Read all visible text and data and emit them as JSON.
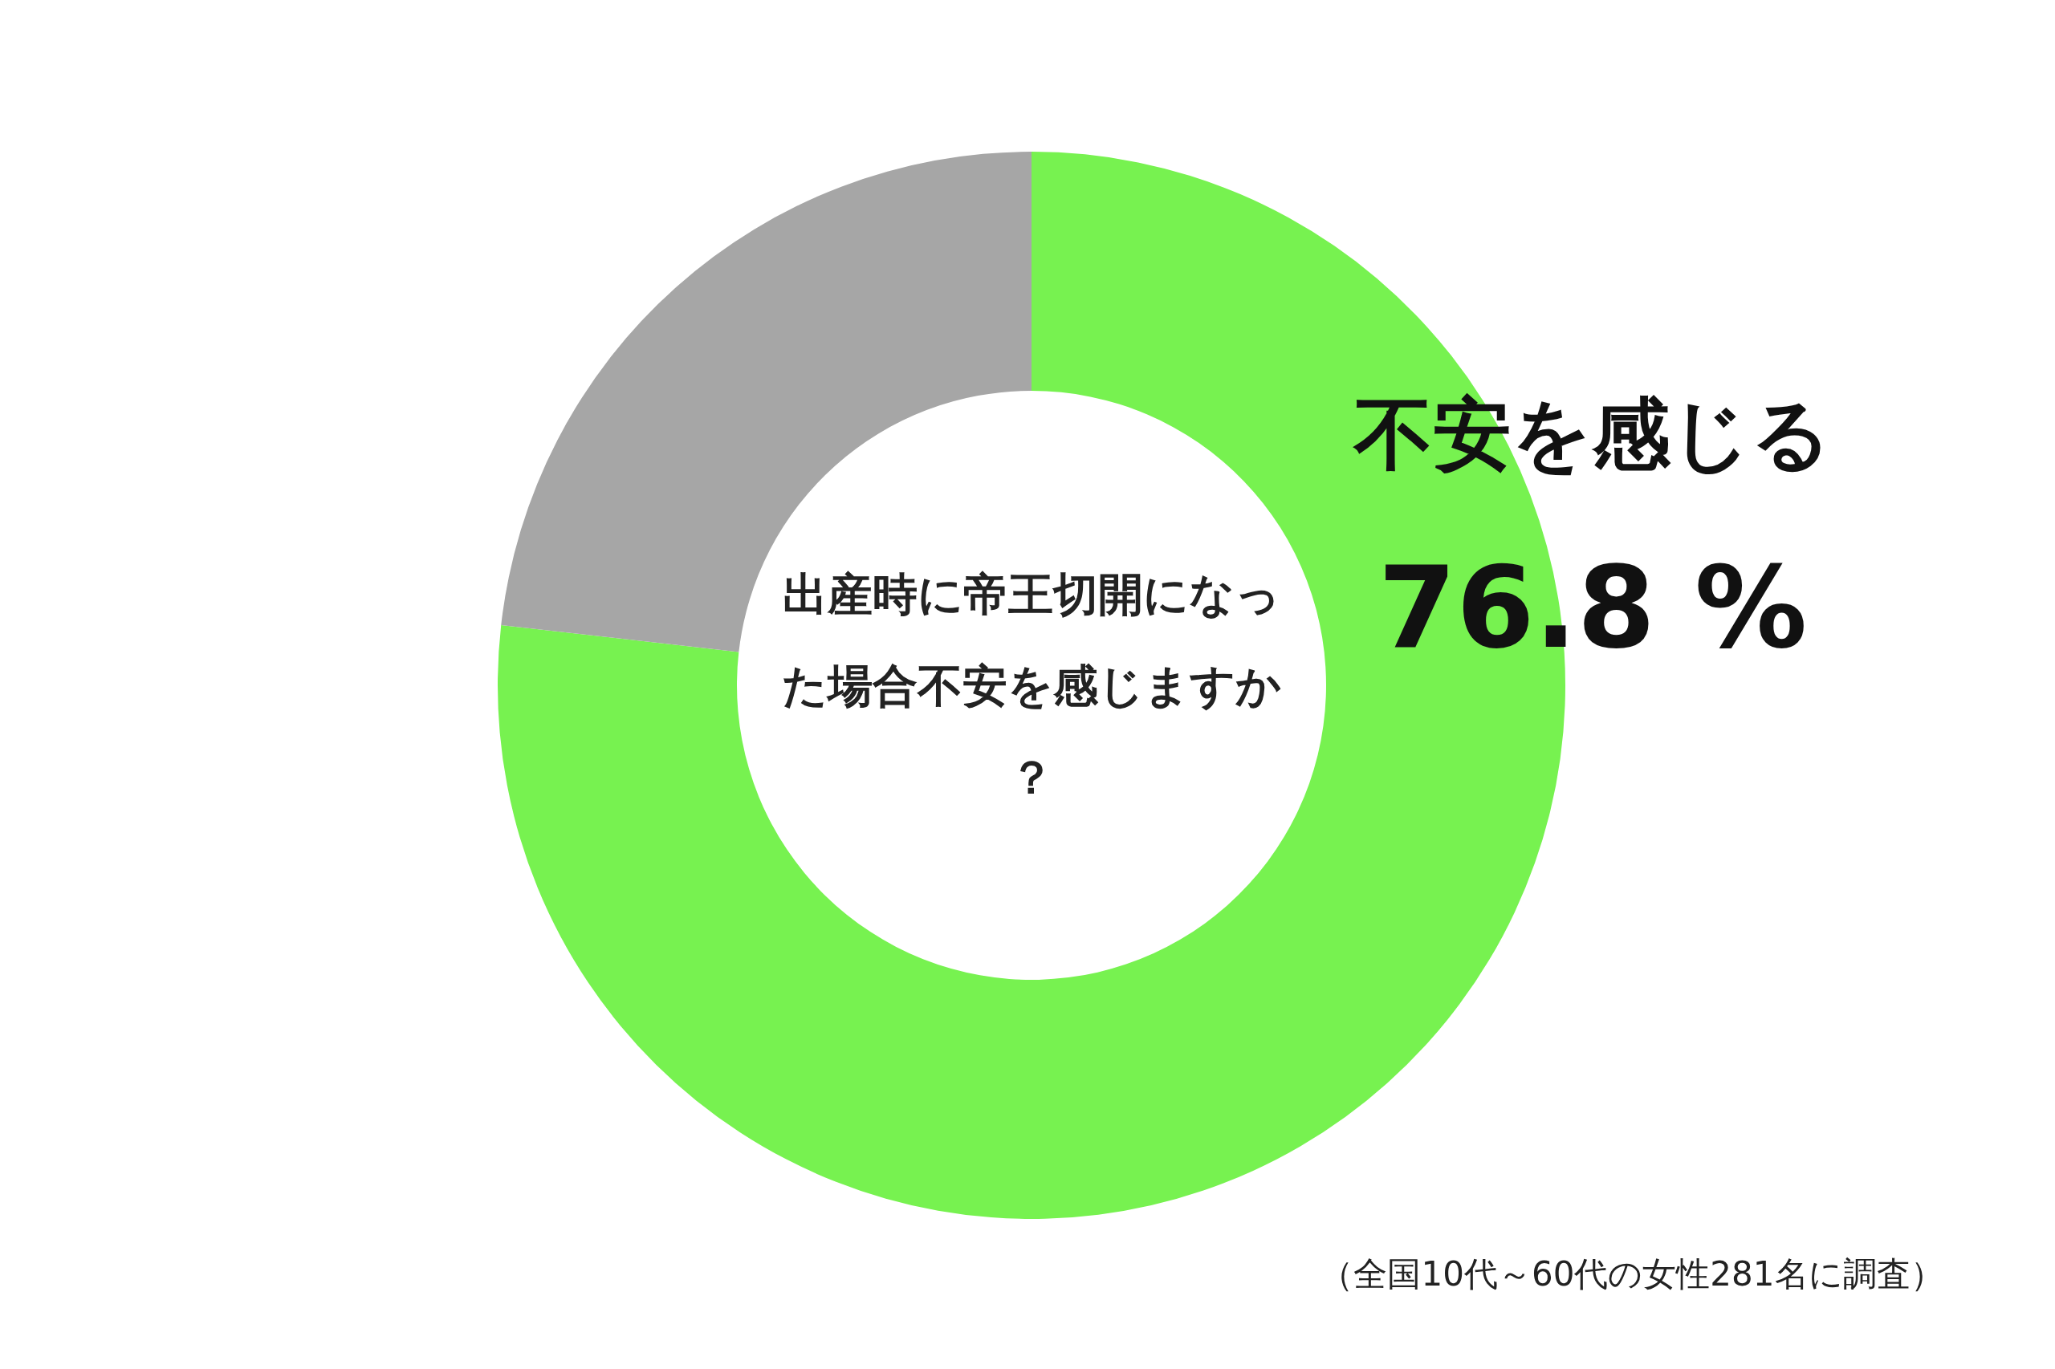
{
  "chart_data": {
    "type": "donut",
    "title": "出産時に帝王切開になった場合不安を感じますか？",
    "categories": [
      "不安を感じる",
      null
    ],
    "values": [
      76.8,
      23.2
    ],
    "colors": [
      "#77f250",
      "#a6a6a6"
    ],
    "value_labels": [
      "76.8 %",
      null
    ],
    "annotations": [
      "（全国10代～60代の女性281名に調査）"
    ]
  }
}
